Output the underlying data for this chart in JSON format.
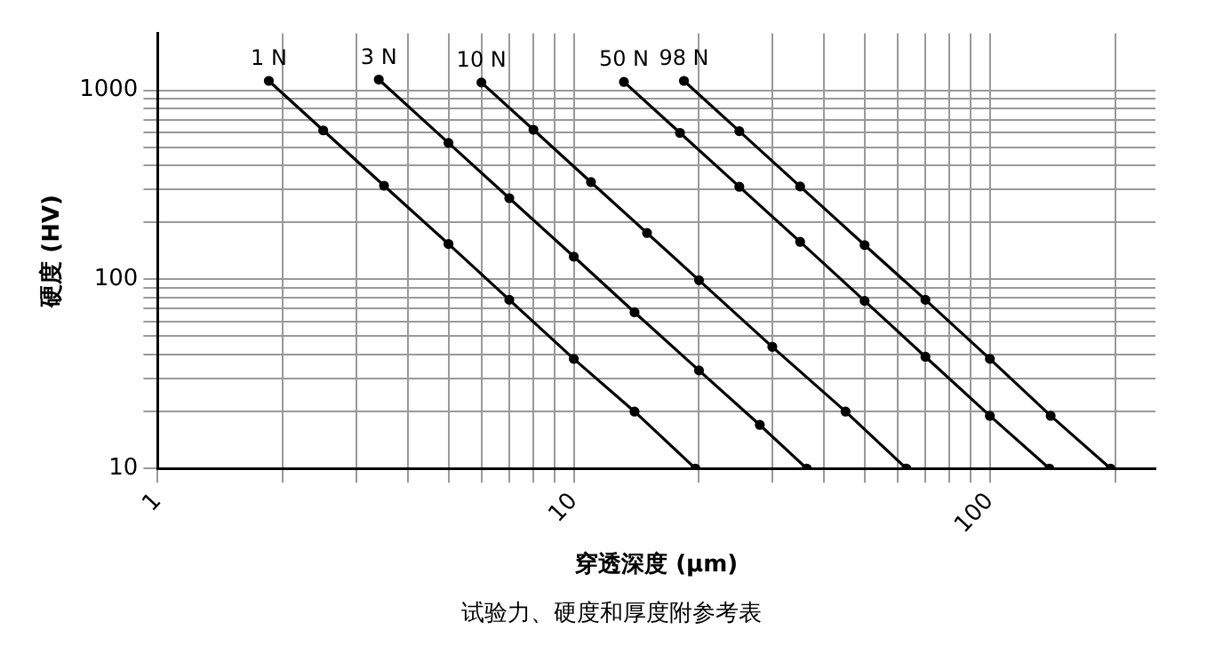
{
  "chart_data": {
    "type": "line",
    "xlabel": "穿透深度 (μm)",
    "ylabel": "硬度 (HV)",
    "log": "xy",
    "grid": true,
    "legend": false,
    "marker": "circle",
    "xlim": [
      1,
      250
    ],
    "ylim": [
      10,
      2000
    ],
    "xticks": [
      1,
      {
        "value": 2,
        "label": null
      },
      {
        "value": 3,
        "label": null
      },
      {
        "value": 4,
        "label": null
      },
      {
        "value": 5,
        "label": null
      },
      {
        "value": 6,
        "label": null
      },
      {
        "value": 7,
        "label": null
      },
      {
        "value": 8,
        "label": null
      },
      {
        "value": 9,
        "label": null
      },
      10,
      {
        "value": 20,
        "label": null
      },
      {
        "value": 30,
        "label": null
      },
      {
        "value": 40,
        "label": null
      },
      {
        "value": 50,
        "label": null
      },
      {
        "value": 60,
        "label": null
      },
      {
        "value": 70,
        "label": null
      },
      {
        "value": 80,
        "label": null
      },
      {
        "value": 90,
        "label": null
      },
      100,
      {
        "value": 200,
        "label": null
      }
    ],
    "yticks": [
      10,
      {
        "value": 20,
        "label": null
      },
      {
        "value": 30,
        "label": null
      },
      {
        "value": 40,
        "label": null
      },
      {
        "value": 50,
        "label": null
      },
      {
        "value": 60,
        "label": null
      },
      {
        "value": 70,
        "label": null
      },
      {
        "value": 80,
        "label": null
      },
      {
        "value": 90,
        "label": null
      },
      100,
      {
        "value": 200,
        "label": null
      },
      {
        "value": 300,
        "label": null
      },
      {
        "value": 400,
        "label": null
      },
      {
        "value": 500,
        "label": null
      },
      {
        "value": 600,
        "label": null
      },
      {
        "value": 700,
        "label": null
      },
      {
        "value": 800,
        "label": null
      },
      {
        "value": 900,
        "label": null
      },
      1000
    ],
    "series": [
      {
        "name": "1 N",
        "color": "#000000",
        "x": [
          1.85,
          2.5,
          3.5,
          5,
          7,
          10,
          14,
          19.6
        ],
        "values": [
          1122,
          614,
          313,
          154,
          78,
          38,
          20,
          10
        ]
      },
      {
        "name": "3 N",
        "color": "#000000",
        "x": [
          3.4,
          5,
          7,
          10,
          14,
          20,
          28,
          36.3
        ],
        "values": [
          1140,
          527,
          269,
          132,
          67,
          33,
          17,
          10
        ]
      },
      {
        "name": "10 N",
        "color": "#000000",
        "x": [
          6,
          8,
          11,
          15,
          20,
          30,
          45,
          63
        ],
        "values": [
          1100,
          619,
          327,
          176,
          99,
          44,
          20,
          10
        ]
      },
      {
        "name": "50 N",
        "color": "#000000",
        "x": [
          13.2,
          18,
          25,
          35,
          50,
          70,
          100,
          139
        ],
        "values": [
          1108,
          596,
          309,
          158,
          77,
          39,
          19,
          10
        ]
      },
      {
        "name": "98 N",
        "color": "#000000",
        "x": [
          18.4,
          25,
          35,
          50,
          70,
          100,
          140,
          195
        ],
        "values": [
          1122,
          608,
          310,
          152,
          78,
          38,
          19,
          10
        ]
      }
    ],
    "annotations": [
      "试验力、硬度和厚度附参考表"
    ]
  }
}
